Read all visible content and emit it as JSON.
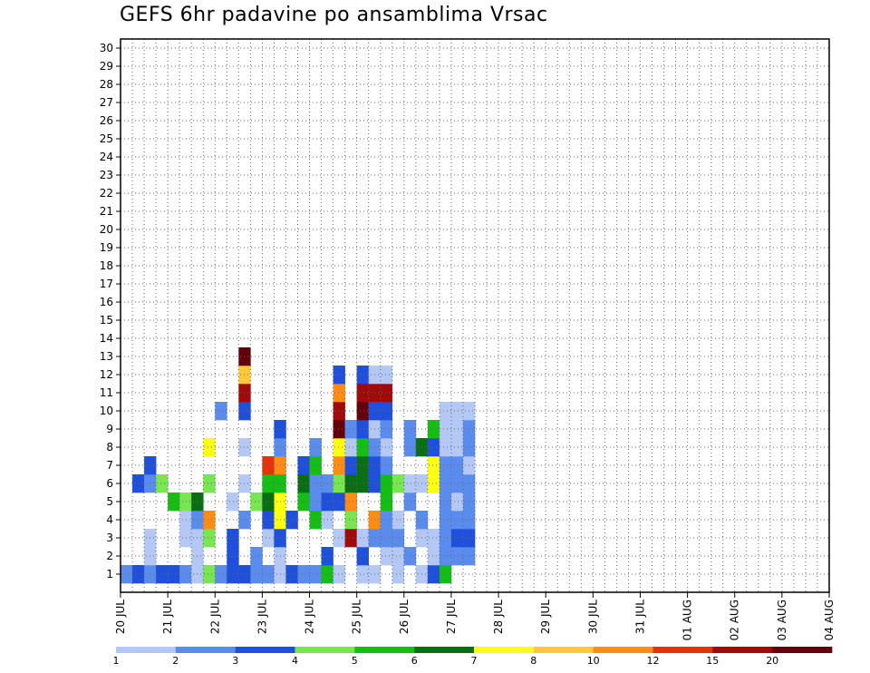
{
  "chart_data": {
    "type": "heatmap",
    "title": "GEFS 6hr padavine po ansamblima Vrsac",
    "xlabel": "",
    "ylabel": "",
    "y_members": [
      1,
      2,
      3,
      4,
      5,
      6,
      7,
      8,
      9,
      10,
      11,
      12,
      13,
      14,
      15,
      16,
      17,
      18,
      19,
      20,
      21,
      22,
      23,
      24,
      25,
      26,
      27,
      28,
      29,
      30
    ],
    "ylim": [
      0,
      30
    ],
    "time_steps_per_day": 4,
    "x_start": "20 JUL",
    "x_ticks": [
      "20 JUL",
      "21 JUL",
      "22 JUL",
      "23 JUL",
      "24 JUL",
      "25 JUL",
      "26 JUL",
      "27 JUL",
      "28 JUL",
      "29 JUL",
      "30 JUL",
      "31 JUL",
      "01 AUG",
      "02 AUG",
      "03 AUG",
      "04 AUG"
    ],
    "grid": true,
    "legend_placement": "bottom",
    "colorbar": {
      "labels": [
        "1",
        "2",
        "3",
        "4",
        "5",
        "6",
        "7",
        "8",
        "10",
        "12",
        "15",
        "20"
      ],
      "colors": [
        "#b4c8f5",
        "#5a8cee",
        "#1e50dc",
        "#78e650",
        "#14be14",
        "#0a6e14",
        "#ffff14",
        "#ffc83c",
        "#ff8c14",
        "#e6320a",
        "#a00a0a",
        "#64000a"
      ]
    },
    "cells": [
      [
        1,
        1,
        2
      ],
      [
        2,
        1,
        3
      ],
      [
        2,
        6,
        3
      ],
      [
        3,
        1,
        2
      ],
      [
        3,
        2,
        1
      ],
      [
        3,
        3,
        1
      ],
      [
        3,
        6,
        2
      ],
      [
        3,
        7,
        3
      ],
      [
        4,
        1,
        3
      ],
      [
        4,
        6,
        4
      ],
      [
        5,
        1,
        3
      ],
      [
        5,
        5,
        5
      ],
      [
        6,
        1,
        2
      ],
      [
        6,
        3,
        1
      ],
      [
        6,
        4,
        1
      ],
      [
        6,
        5,
        4
      ],
      [
        7,
        1,
        1
      ],
      [
        7,
        2,
        1
      ],
      [
        7,
        3,
        1
      ],
      [
        7,
        4,
        2
      ],
      [
        7,
        5,
        6
      ],
      [
        8,
        1,
        4
      ],
      [
        8,
        3,
        4
      ],
      [
        8,
        4,
        9
      ],
      [
        8,
        6,
        4
      ],
      [
        8,
        8,
        7
      ],
      [
        9,
        1,
        2
      ],
      [
        9,
        10,
        2
      ],
      [
        10,
        1,
        3
      ],
      [
        10,
        2,
        3
      ],
      [
        10,
        3,
        3
      ],
      [
        10,
        5,
        1
      ],
      [
        11,
        1,
        3
      ],
      [
        11,
        4,
        2
      ],
      [
        11,
        6,
        1
      ],
      [
        11,
        8,
        1
      ],
      [
        11,
        10,
        3
      ],
      [
        11,
        11,
        11
      ],
      [
        11,
        12,
        8
      ],
      [
        11,
        13,
        12
      ],
      [
        12,
        1,
        2
      ],
      [
        12,
        2,
        2
      ],
      [
        12,
        5,
        4
      ],
      [
        13,
        1,
        2
      ],
      [
        13,
        3,
        1
      ],
      [
        13,
        4,
        3
      ],
      [
        13,
        5,
        6
      ],
      [
        13,
        6,
        5
      ],
      [
        13,
        7,
        10
      ],
      [
        14,
        1,
        1
      ],
      [
        14,
        2,
        1
      ],
      [
        14,
        3,
        3
      ],
      [
        14,
        4,
        7
      ],
      [
        14,
        5,
        7
      ],
      [
        14,
        6,
        5
      ],
      [
        14,
        7,
        9
      ],
      [
        14,
        8,
        2
      ],
      [
        14,
        9,
        3
      ],
      [
        15,
        1,
        3
      ],
      [
        15,
        4,
        3
      ],
      [
        16,
        1,
        2
      ],
      [
        16,
        5,
        5
      ],
      [
        16,
        6,
        6
      ],
      [
        16,
        7,
        3
      ],
      [
        17,
        1,
        2
      ],
      [
        17,
        4,
        5
      ],
      [
        17,
        5,
        2
      ],
      [
        17,
        6,
        2
      ],
      [
        17,
        7,
        5
      ],
      [
        17,
        8,
        2
      ],
      [
        18,
        1,
        5
      ],
      [
        18,
        2,
        3
      ],
      [
        18,
        4,
        1
      ],
      [
        18,
        5,
        3
      ],
      [
        18,
        6,
        2
      ],
      [
        19,
        1,
        1
      ],
      [
        19,
        3,
        1
      ],
      [
        19,
        5,
        3
      ],
      [
        19,
        6,
        4
      ],
      [
        19,
        7,
        9
      ],
      [
        19,
        8,
        7
      ],
      [
        19,
        9,
        12
      ],
      [
        19,
        10,
        11
      ],
      [
        19,
        11,
        9
      ],
      [
        19,
        12,
        3
      ],
      [
        20,
        3,
        11
      ],
      [
        20,
        4,
        4
      ],
      [
        20,
        5,
        9
      ],
      [
        20,
        6,
        6
      ],
      [
        20,
        7,
        3
      ],
      [
        20,
        8,
        1
      ],
      [
        20,
        9,
        2
      ],
      [
        21,
        1,
        1
      ],
      [
        21,
        2,
        3
      ],
      [
        21,
        3,
        1
      ],
      [
        21,
        6,
        6
      ],
      [
        21,
        7,
        6
      ],
      [
        21,
        8,
        5
      ],
      [
        21,
        9,
        3
      ],
      [
        21,
        10,
        12
      ],
      [
        21,
        11,
        11
      ],
      [
        21,
        12,
        3
      ],
      [
        22,
        1,
        1
      ],
      [
        22,
        3,
        2
      ],
      [
        22,
        4,
        9
      ],
      [
        22,
        6,
        3
      ],
      [
        22,
        7,
        3
      ],
      [
        22,
        8,
        2
      ],
      [
        22,
        9,
        1
      ],
      [
        22,
        10,
        3
      ],
      [
        22,
        11,
        11
      ],
      [
        22,
        12,
        1
      ],
      [
        23,
        2,
        1
      ],
      [
        23,
        3,
        2
      ],
      [
        23,
        4,
        2
      ],
      [
        23,
        5,
        5
      ],
      [
        23,
        6,
        5
      ],
      [
        23,
        7,
        2
      ],
      [
        23,
        8,
        1
      ],
      [
        23,
        9,
        2
      ],
      [
        23,
        10,
        3
      ],
      [
        23,
        11,
        11
      ],
      [
        23,
        12,
        1
      ],
      [
        24,
        1,
        1
      ],
      [
        24,
        2,
        1
      ],
      [
        24,
        3,
        2
      ],
      [
        24,
        4,
        1
      ],
      [
        24,
        6,
        4
      ],
      [
        25,
        2,
        2
      ],
      [
        25,
        5,
        2
      ],
      [
        25,
        6,
        1
      ],
      [
        25,
        8,
        2
      ],
      [
        25,
        9,
        2
      ],
      [
        26,
        1,
        1
      ],
      [
        26,
        3,
        1
      ],
      [
        26,
        4,
        2
      ],
      [
        26,
        6,
        1
      ],
      [
        26,
        8,
        6
      ],
      [
        27,
        1,
        3
      ],
      [
        27,
        2,
        1
      ],
      [
        27,
        3,
        1
      ],
      [
        27,
        6,
        7
      ],
      [
        27,
        7,
        7
      ],
      [
        27,
        8,
        3
      ],
      [
        27,
        9,
        5
      ],
      [
        28,
        1,
        5
      ],
      [
        28,
        2,
        2
      ],
      [
        28,
        3,
        2
      ],
      [
        28,
        4,
        2
      ],
      [
        28,
        5,
        2
      ],
      [
        28,
        6,
        2
      ],
      [
        28,
        7,
        2
      ],
      [
        28,
        8,
        1
      ],
      [
        28,
        9,
        1
      ],
      [
        28,
        10,
        1
      ],
      [
        29,
        2,
        2
      ],
      [
        29,
        3,
        3
      ],
      [
        29,
        4,
        2
      ],
      [
        29,
        5,
        1
      ],
      [
        29,
        6,
        2
      ],
      [
        29,
        7,
        2
      ],
      [
        29,
        8,
        1
      ],
      [
        29,
        9,
        1
      ],
      [
        29,
        10,
        1
      ],
      [
        30,
        2,
        2
      ],
      [
        30,
        3,
        3
      ],
      [
        30,
        4,
        2
      ],
      [
        30,
        5,
        2
      ],
      [
        30,
        6,
        2
      ],
      [
        30,
        7,
        1
      ],
      [
        30,
        8,
        2
      ],
      [
        30,
        9,
        2
      ],
      [
        30,
        10,
        1
      ]
    ]
  }
}
